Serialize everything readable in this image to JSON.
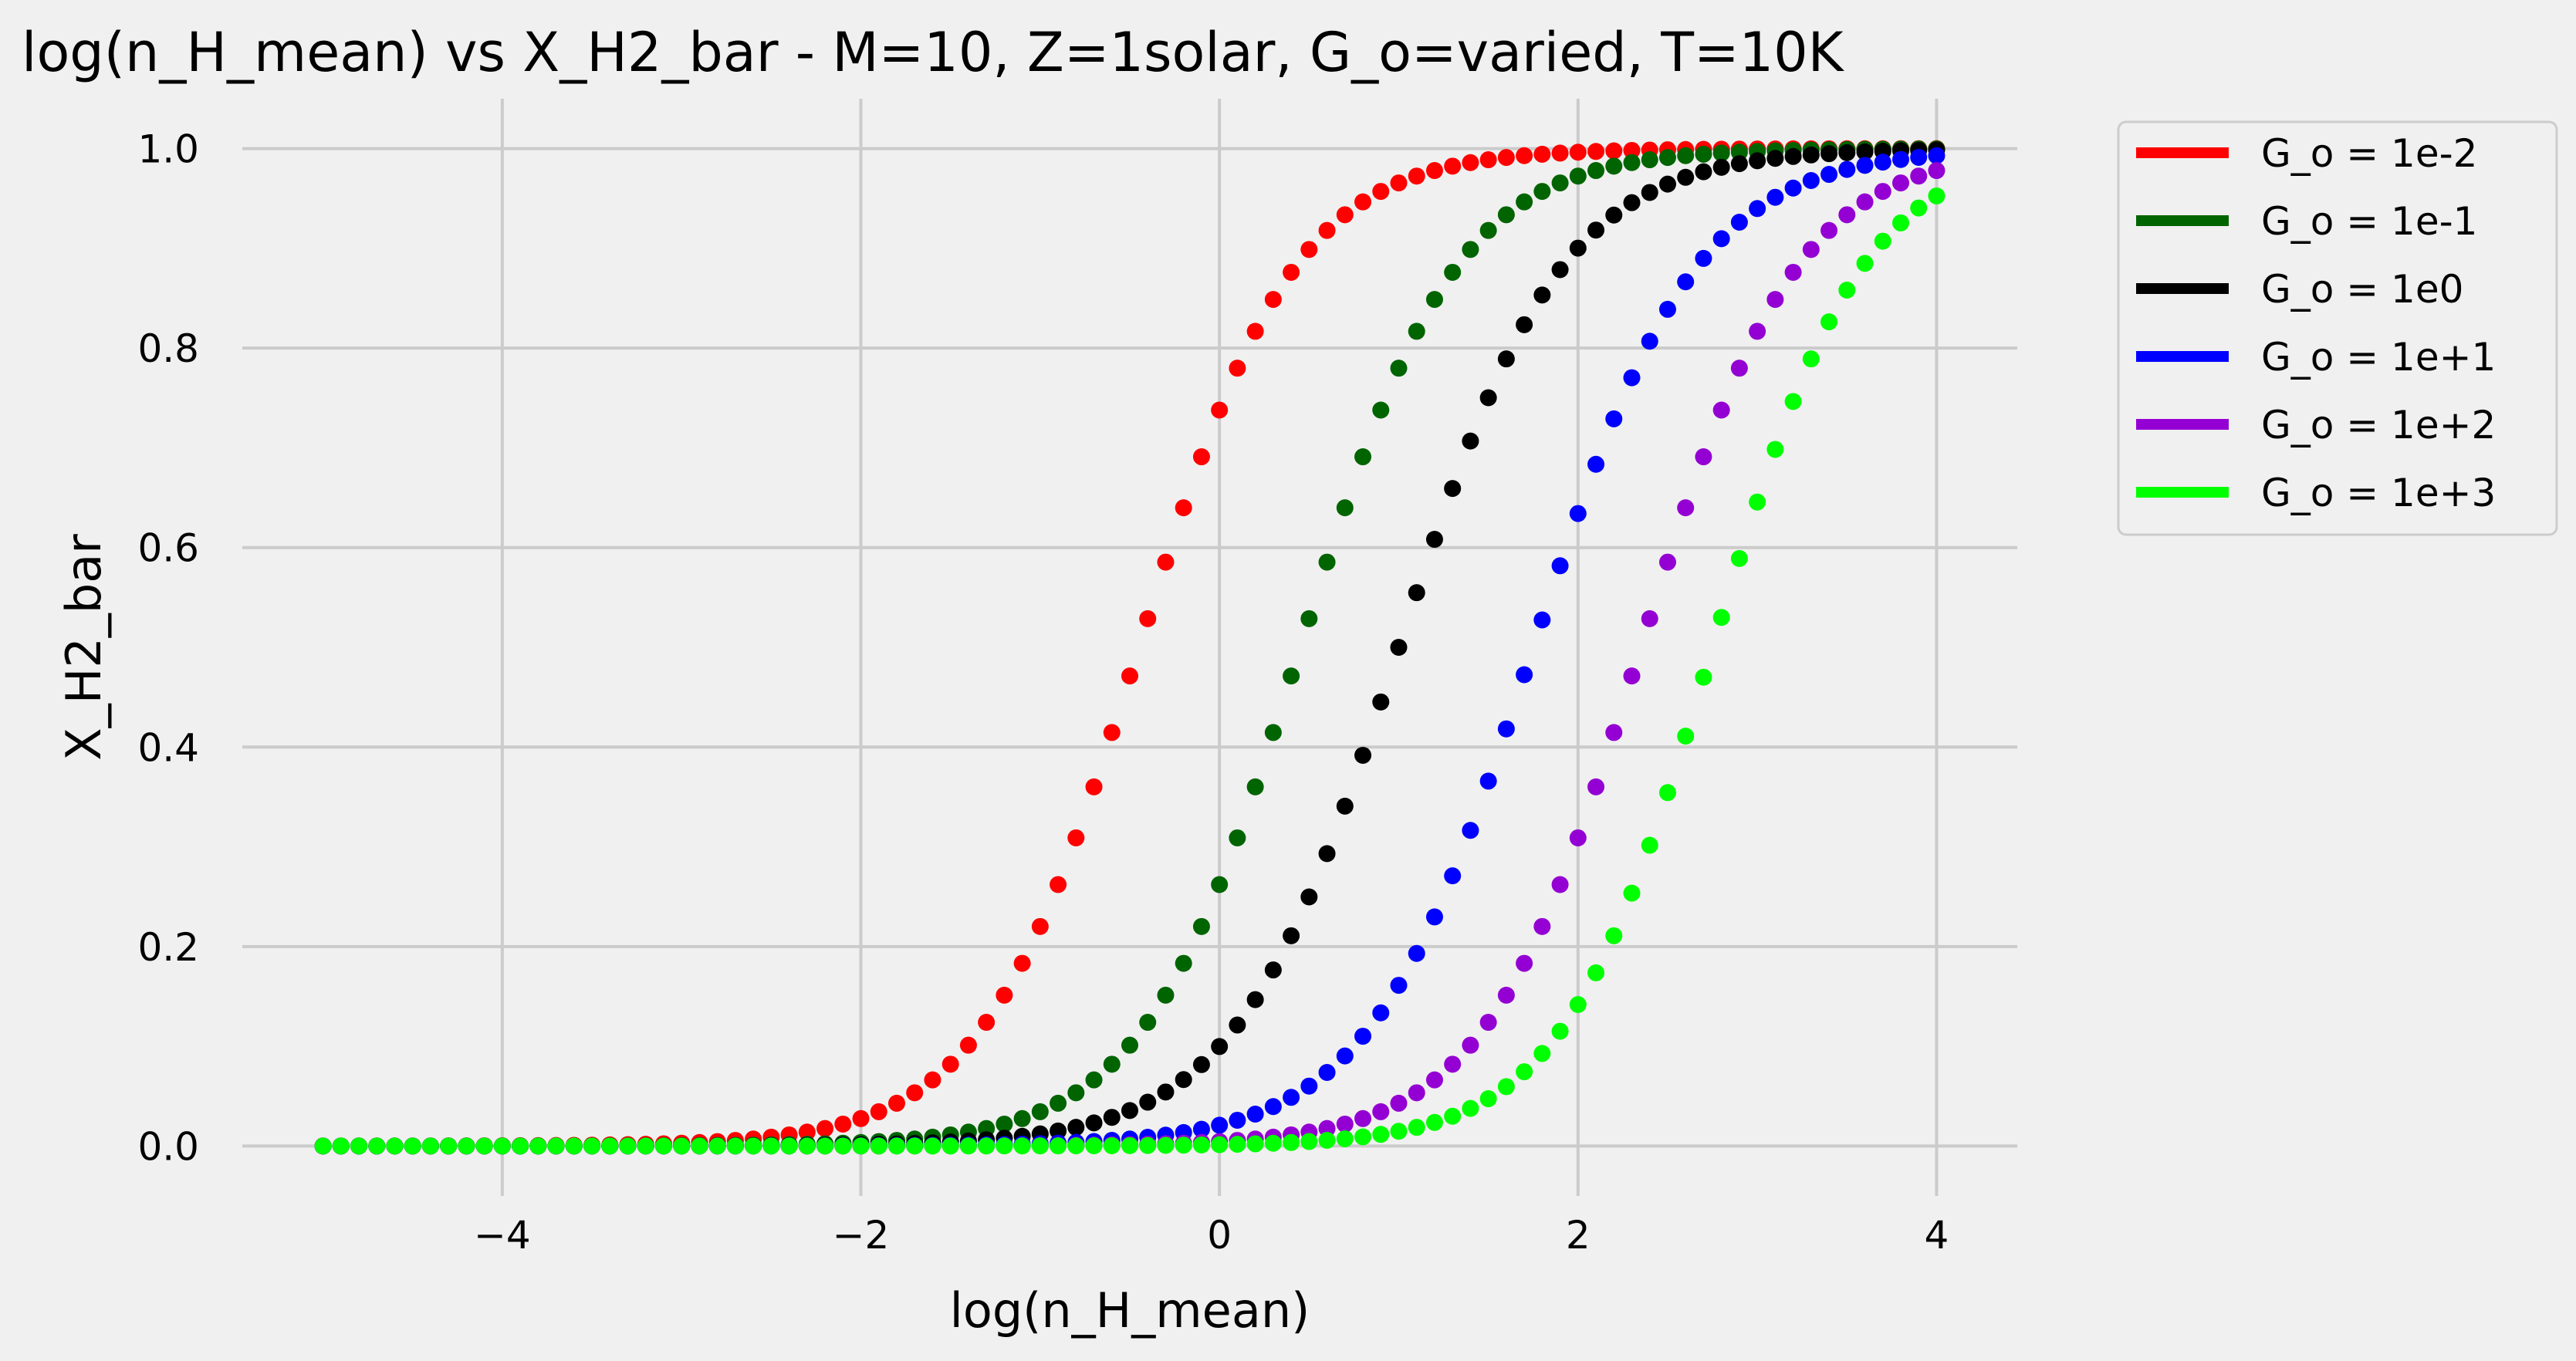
{
  "chart_data": {
    "type": "scatter",
    "title": "log(n_H_mean) vs X_H2_bar - M=10, Z=1solar, G_o=varied, T=10K",
    "xlabel": "log(n_H_mean)",
    "ylabel": "X_H2_bar",
    "xlim": [
      -5.45,
      4.45
    ],
    "ylim": [
      -0.05,
      1.05
    ],
    "xticks": [
      -4,
      -2,
      0,
      2,
      4
    ],
    "xtick_labels": [
      "−4",
      "−2",
      "0",
      "2",
      "4"
    ],
    "yticks": [
      0.0,
      0.2,
      0.4,
      0.6,
      0.8,
      1.0
    ],
    "ytick_labels": [
      "0.0",
      "0.2",
      "0.4",
      "0.6",
      "0.8",
      "1.0"
    ],
    "grid": true,
    "legend_position": "outside-top-right",
    "x": {
      "start": -5,
      "end": 4,
      "count": 91
    },
    "model": "logistic in log-space: y = 1/(1+exp(-k*(x - x_half)))",
    "series": [
      {
        "name": "G_o = 1e-2",
        "color": "#ff0000",
        "x_half": -0.45,
        "k": 2.3
      },
      {
        "name": "G_o = 1e-1",
        "color": "#006400",
        "x_half": 0.45,
        "k": 2.3
      },
      {
        "name": "G_o = 1e0",
        "color": "#000000",
        "x_half": 1.0,
        "k": 2.2
      },
      {
        "name": "G_o = 1e+1",
        "color": "#0000ff",
        "x_half": 1.75,
        "k": 2.2
      },
      {
        "name": "G_o = 1e+2",
        "color": "#9400d3",
        "x_half": 2.35,
        "k": 2.3
      },
      {
        "name": "G_o = 1e+3",
        "color": "#00ff00",
        "x_half": 2.75,
        "k": 2.4
      }
    ]
  }
}
